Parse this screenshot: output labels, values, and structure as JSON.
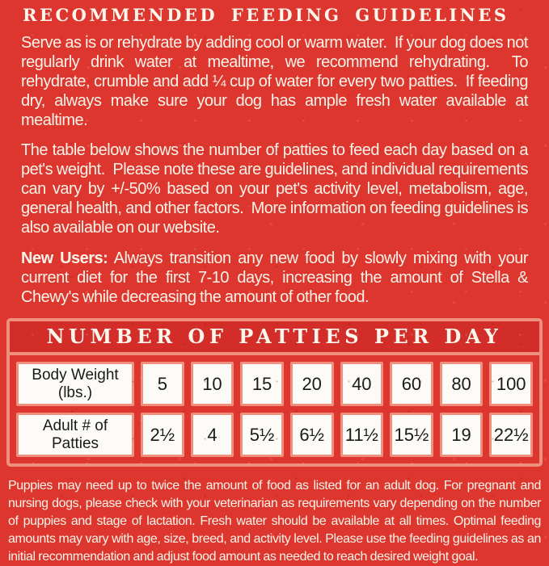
{
  "panel": {
    "title": "RECOMMENDED FEEDING GUIDELINES",
    "intro": "Serve as is or rehydrate by adding cool or warm water.  If your dog does not regularly drink water at mealtime, we recommend rehydrating.  To rehydrate, crumble and add ¼ cup of water for every two patties.  If feeding dry, always make sure your dog has ample fresh water available at mealtime.",
    "table_info": "The table below shows the number of patties to feed each day based on a pet's weight.  Please note these are guidelines, and individual requirements can vary by +/-50% based on your pet's activity level, metabolism, age, general health, and other factors.  More information on feeding guidelines is also available on our website.",
    "new_users_label": "New Users:",
    "new_users_text": "Always transition any new food by slowly mixing with your current diet for the first 7-10 days, increasing the amount of Stella & Chewy's while decreasing the amount of other food.",
    "footnote": "Puppies may need up to twice the amount of food as listed for an adult dog. For pregnant and nursing dogs, please check with your veterinarian as requirements vary depending on the number of puppies and stage of lactation. Fresh water should be available at all times. Optimal feeding amounts may vary with age, size, breed, and activity level. Please use the feeding guidelines as an initial recommendation and adjust food amount as needed to reach desired weight goal."
  },
  "feeding_table": {
    "title": "NUMBER OF PATTIES PER DAY",
    "row_headers": [
      "Body Weight (lbs.)",
      "Adult # of Patties"
    ],
    "body_weights_lbs": [
      "5",
      "10",
      "15",
      "20",
      "40",
      "60",
      "80",
      "100"
    ],
    "adult_patties_per_day": [
      "2½",
      "4",
      "5½",
      "6½",
      "11½",
      "15½",
      "19",
      "22½"
    ]
  },
  "colors": {
    "background_red": "#dc362f",
    "header_band_red": "#d22d28",
    "salmon_border": "#ef8f7d",
    "cream_text": "#f8f3e7",
    "cell_white": "#fcfbf7",
    "cell_text": "#1a1a1a"
  }
}
